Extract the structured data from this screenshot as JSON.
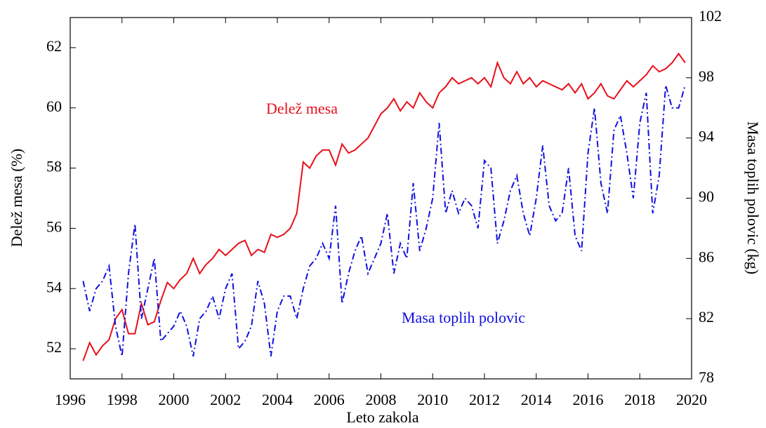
{
  "chart_data": {
    "type": "line",
    "xlabel": "Leto zakola",
    "ylabel": "Delež mesa (%)",
    "y2label": "Masa toplih polovic (kg)",
    "annotations": [
      "Delež mesa",
      "Masa toplih polovic"
    ],
    "x": [
      1996.5,
      1996.75,
      1997,
      1997.25,
      1997.5,
      1997.75,
      1998,
      1998.25,
      1998.5,
      1998.75,
      1999,
      1999.25,
      1999.5,
      1999.75,
      2000,
      2000.25,
      2000.5,
      2000.75,
      2001,
      2001.25,
      2001.5,
      2001.75,
      2002,
      2002.25,
      2002.5,
      2002.75,
      2003,
      2003.25,
      2003.5,
      2003.75,
      2004,
      2004.25,
      2004.5,
      2004.75,
      2005,
      2005.25,
      2005.5,
      2005.75,
      2006,
      2006.25,
      2006.5,
      2006.75,
      2007,
      2007.25,
      2007.5,
      2007.75,
      2008,
      2008.25,
      2008.5,
      2008.75,
      2009,
      2009.25,
      2009.5,
      2009.75,
      2010,
      2010.25,
      2010.5,
      2010.75,
      2011,
      2011.25,
      2011.5,
      2011.75,
      2012,
      2012.25,
      2012.5,
      2012.75,
      2013,
      2013.25,
      2013.5,
      2013.75,
      2014,
      2014.25,
      2014.5,
      2014.75,
      2015,
      2015.25,
      2015.5,
      2015.75,
      2016,
      2016.25,
      2016.5,
      2016.75,
      2017,
      2017.25,
      2017.5,
      2017.75,
      2018,
      2018.25,
      2018.5,
      2018.75,
      2019,
      2019.25,
      2019.5,
      2019.75
    ],
    "series": [
      {
        "name": "Delež mesa",
        "color": "#e8101a",
        "dash": "solid",
        "axis": "y",
        "values": [
          51.6,
          52.2,
          51.8,
          52.1,
          52.3,
          53.0,
          53.3,
          52.5,
          52.5,
          53.5,
          52.8,
          52.9,
          53.6,
          54.2,
          54.0,
          54.3,
          54.5,
          55.0,
          54.5,
          54.8,
          55.0,
          55.3,
          55.1,
          55.3,
          55.5,
          55.6,
          55.1,
          55.3,
          55.2,
          55.8,
          55.7,
          55.8,
          56.0,
          56.5,
          58.2,
          58.0,
          58.4,
          58.6,
          58.6,
          58.1,
          58.8,
          58.5,
          58.6,
          58.8,
          59.0,
          59.4,
          59.8,
          60.0,
          60.3,
          59.9,
          60.2,
          60.0,
          60.5,
          60.2,
          60.0,
          60.5,
          60.7,
          61.0,
          60.8,
          60.9,
          61.0,
          60.8,
          61.0,
          60.7,
          61.5,
          61.0,
          60.8,
          61.2,
          60.8,
          61.0,
          60.7,
          60.9,
          60.8,
          60.7,
          60.6,
          60.8,
          60.5,
          60.8,
          60.3,
          60.5,
          60.8,
          60.4,
          60.3,
          60.6,
          60.9,
          60.7,
          60.9,
          61.1,
          61.4,
          61.2,
          61.3,
          61.5,
          61.8,
          61.5
        ]
      },
      {
        "name": "Masa toplih polovic",
        "color": "#1010e0",
        "dash": "dashdot",
        "axis": "y2",
        "values": [
          84.5,
          82.5,
          84.0,
          84.5,
          85.5,
          81.5,
          79.5,
          85.0,
          88.3,
          82.0,
          84.0,
          86.0,
          80.5,
          81.0,
          81.5,
          82.5,
          81.5,
          79.5,
          82.0,
          82.5,
          83.5,
          82.0,
          84.0,
          85.0,
          80.0,
          80.5,
          81.5,
          84.5,
          83.0,
          79.5,
          82.5,
          83.5,
          83.5,
          82.0,
          84.0,
          85.5,
          86.0,
          87.0,
          86.0,
          89.5,
          83.0,
          85.0,
          86.5,
          87.5,
          85.0,
          86.0,
          87.0,
          89.0,
          85.0,
          87.0,
          86.0,
          91.0,
          86.5,
          88.0,
          90.0,
          95.0,
          89.0,
          90.5,
          89.0,
          90.0,
          89.5,
          88.0,
          92.5,
          92.0,
          87.0,
          88.5,
          90.5,
          91.5,
          89.0,
          87.5,
          90.0,
          93.5,
          89.5,
          88.5,
          89.0,
          92.0,
          87.5,
          86.5,
          93.0,
          96.0,
          91.0,
          89.0,
          94.5,
          95.5,
          93.0,
          90.0,
          95.0,
          97.0,
          89.0,
          91.5,
          97.5,
          96.0,
          96.0,
          97.5
        ]
      }
    ],
    "xlim": [
      1996,
      2020
    ],
    "xticks": [
      1996,
      1998,
      2000,
      2002,
      2004,
      2006,
      2008,
      2010,
      2012,
      2014,
      2016,
      2018,
      2020
    ],
    "ylim": [
      51,
      63
    ],
    "yticks": [
      52,
      54,
      56,
      58,
      60,
      62
    ],
    "y2lim": [
      78,
      102
    ],
    "y2ticks": [
      78,
      82,
      86,
      90,
      94,
      98,
      102
    ],
    "grid": false
  }
}
